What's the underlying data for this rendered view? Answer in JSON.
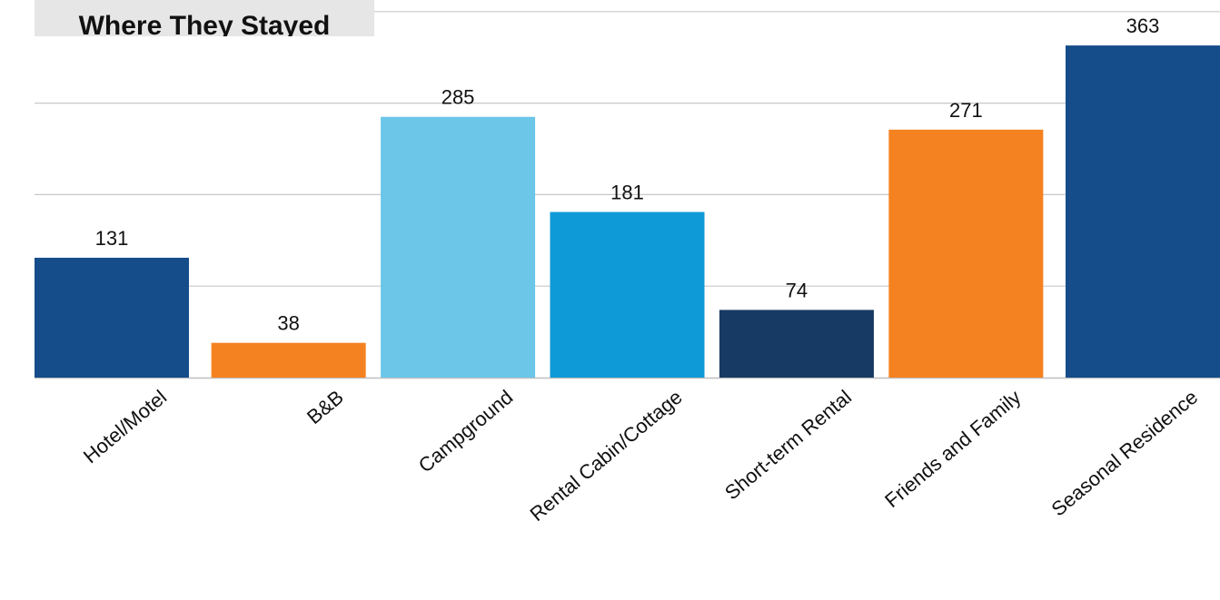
{
  "chart_data": {
    "type": "bar",
    "title": "Where They Stayed",
    "categories": [
      "Hotel/Motel",
      "B&B",
      "Campground",
      "Rental Cabin/Cottage",
      "Short-term Rental",
      "Friends and Family",
      "Seasonal Residence"
    ],
    "values": [
      131,
      38,
      285,
      181,
      74,
      271,
      363
    ],
    "data_labels": [
      "131",
      "38",
      "285",
      "181",
      "74",
      "271",
      "363"
    ],
    "colors": [
      "#154c8a",
      "#f58220",
      "#6bc6e8",
      "#0e9ad6",
      "#173a64",
      "#f58220",
      "#154c8a"
    ],
    "ylim": [
      0,
      400
    ],
    "gridlines": [
      100,
      200,
      300,
      400
    ],
    "grid": true,
    "xlabel": "",
    "ylabel": ""
  }
}
